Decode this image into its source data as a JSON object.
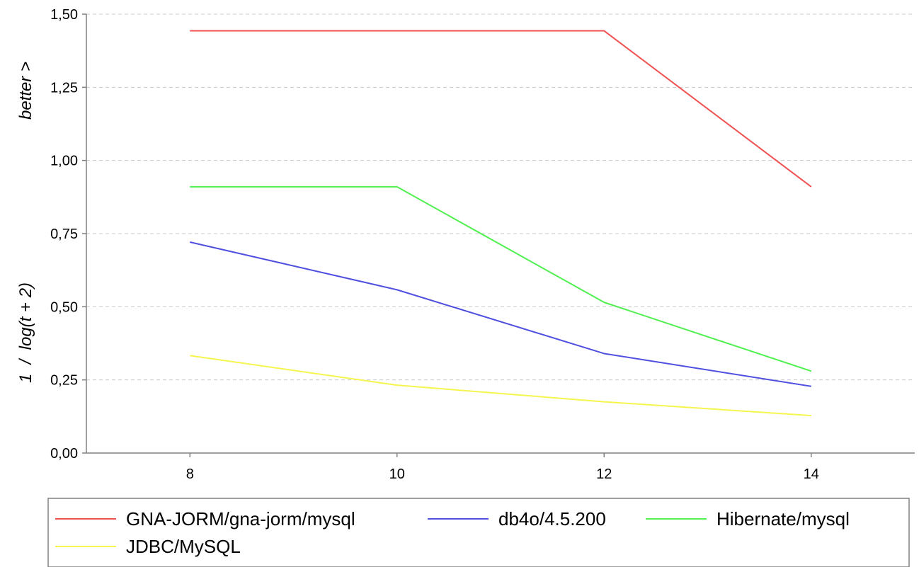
{
  "chart_data": {
    "type": "line",
    "title": "",
    "xlabel": "",
    "ylabel": "1  /  log(t + 2)",
    "ylabel_secondary": "better >",
    "x": [
      8,
      10,
      12,
      14
    ],
    "xlim": [
      7,
      15
    ],
    "ylim": [
      0,
      1.5
    ],
    "x_ticks": [
      8,
      10,
      12,
      14
    ],
    "x_tick_labels": [
      "8",
      "10",
      "12",
      "14"
    ],
    "y_ticks": [
      0,
      0.25,
      0.5,
      0.75,
      1.0,
      1.25,
      1.5
    ],
    "y_tick_labels": [
      "0,00",
      "0,25",
      "0,50",
      "0,75",
      "1,00",
      "1,25",
      "1,50"
    ],
    "grid": "horizontal dashed",
    "legend_position": "bottom",
    "series": [
      {
        "name": "GNA-JORM/gna-jorm/mysql",
        "color": "#f05050",
        "values": [
          1.443,
          1.443,
          1.443,
          0.91
        ]
      },
      {
        "name": "db4o/4.5.200",
        "color": "#5050e0",
        "values": [
          0.721,
          0.558,
          0.34,
          0.228
        ]
      },
      {
        "name": "Hibernate/mysql",
        "color": "#50f050",
        "values": [
          0.91,
          0.91,
          0.515,
          0.28
        ]
      },
      {
        "name": "JDBC/MySQL",
        "color": "#f5f550",
        "values": [
          0.333,
          0.232,
          0.175,
          0.128
        ]
      }
    ]
  }
}
